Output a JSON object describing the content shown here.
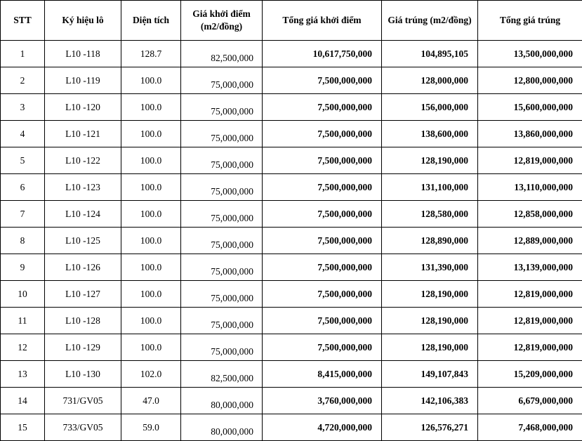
{
  "table": {
    "headers": [
      "STT",
      "Ký hiệu lô",
      "Diện tích",
      "Giá khởi điểm (m2/đồng)",
      "Tổng giá khởi điểm",
      "Giá trúng (m2/đồng)",
      "Tổng giá trúng"
    ],
    "rows": [
      [
        "1",
        "L10 -118",
        "128.7",
        "82,500,000",
        "10,617,750,000",
        "104,895,105",
        "13,500,000,000"
      ],
      [
        "2",
        "L10 -119",
        "100.0",
        "75,000,000",
        "7,500,000,000",
        "128,000,000",
        "12,800,000,000"
      ],
      [
        "3",
        "L10 -120",
        "100.0",
        "75,000,000",
        "7,500,000,000",
        "156,000,000",
        "15,600,000,000"
      ],
      [
        "4",
        "L10 -121",
        "100.0",
        "75,000,000",
        "7,500,000,000",
        "138,600,000",
        "13,860,000,000"
      ],
      [
        "5",
        "L10 -122",
        "100.0",
        "75,000,000",
        "7,500,000,000",
        "128,190,000",
        "12,819,000,000"
      ],
      [
        "6",
        "L10 -123",
        "100.0",
        "75,000,000",
        "7,500,000,000",
        "131,100,000",
        "13,110,000,000"
      ],
      [
        "7",
        "L10 -124",
        "100.0",
        "75,000,000",
        "7,500,000,000",
        "128,580,000",
        "12,858,000,000"
      ],
      [
        "8",
        "L10 -125",
        "100.0",
        "75,000,000",
        "7,500,000,000",
        "128,890,000",
        "12,889,000,000"
      ],
      [
        "9",
        "L10 -126",
        "100.0",
        "75,000,000",
        "7,500,000,000",
        "131,390,000",
        "13,139,000,000"
      ],
      [
        "10",
        "L10 -127",
        "100.0",
        "75,000,000",
        "7,500,000,000",
        "128,190,000",
        "12,819,000,000"
      ],
      [
        "11",
        "L10 -128",
        "100.0",
        "75,000,000",
        "7,500,000,000",
        "128,190,000",
        "12,819,000,000"
      ],
      [
        "12",
        "L10 -129",
        "100.0",
        "75,000,000",
        "7,500,000,000",
        "128,190,000",
        "12,819,000,000"
      ],
      [
        "13",
        "L10 -130",
        "102.0",
        "82,500,000",
        "8,415,000,000",
        "149,107,843",
        "15,209,000,000"
      ],
      [
        "14",
        "731/GV05",
        "47.0",
        "80,000,000",
        "3,760,000,000",
        "142,106,383",
        "6,679,000,000"
      ],
      [
        "15",
        "733/GV05",
        "59.0",
        "80,000,000",
        "4,720,000,000",
        "126,576,271",
        "7,468,000,000"
      ]
    ]
  },
  "layout_colors": {
    "border": "#000000",
    "background": "#ffffff",
    "text": "#000000"
  }
}
